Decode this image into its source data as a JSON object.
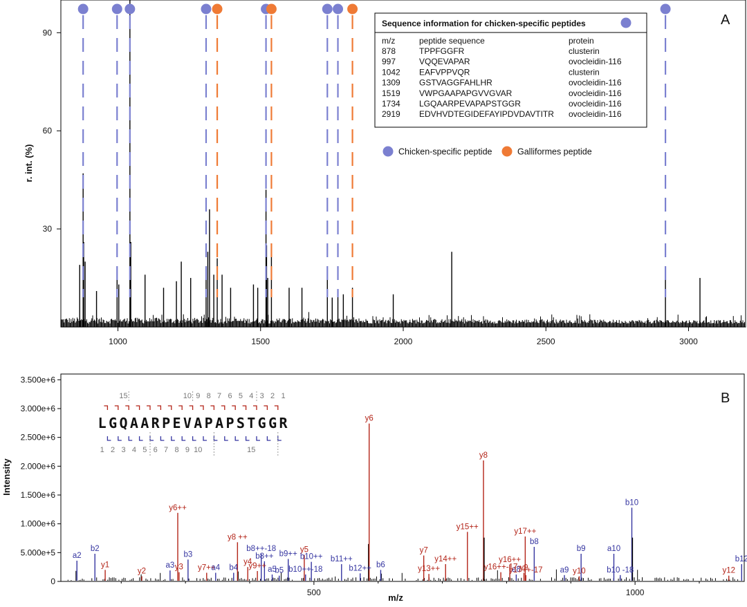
{
  "colors": {
    "chicken": "#7b80d0",
    "galliformes": "#ef7a35",
    "y_ion": "#b32418",
    "b_ion": "#3434a0",
    "frame": "#000000"
  },
  "chart_data": [
    {
      "panel": "A",
      "type": "line",
      "title": "",
      "xlabel": "",
      "ylabel": "r. int. (%)",
      "xlim": [
        800,
        3200
      ],
      "ylim": [
        0,
        100
      ],
      "x_ticks": [
        1000,
        1500,
        2000,
        2500,
        3000
      ],
      "y_ticks": [
        30,
        60,
        90
      ],
      "chicken_specific_markers_mz": [
        878,
        997,
        1042,
        1309,
        1519,
        1734,
        1771,
        2919
      ],
      "galliformes_markers_mz": [
        1348,
        1538,
        1822
      ],
      "major_peaks": [
        {
          "mz": 866,
          "value": 19
        },
        {
          "mz": 878,
          "value": 47
        },
        {
          "mz": 880,
          "value": 26
        },
        {
          "mz": 885,
          "value": 20
        },
        {
          "mz": 925,
          "value": 11
        },
        {
          "mz": 997,
          "value": 16
        },
        {
          "mz": 1003,
          "value": 13
        },
        {
          "mz": 1042,
          "value": 100
        },
        {
          "mz": 1045,
          "value": 26
        },
        {
          "mz": 1095,
          "value": 16
        },
        {
          "mz": 1160,
          "value": 12
        },
        {
          "mz": 1205,
          "value": 14
        },
        {
          "mz": 1222,
          "value": 20
        },
        {
          "mz": 1255,
          "value": 15
        },
        {
          "mz": 1309,
          "value": 15
        },
        {
          "mz": 1315,
          "value": 23
        },
        {
          "mz": 1321,
          "value": 36
        },
        {
          "mz": 1336,
          "value": 16
        },
        {
          "mz": 1348,
          "value": 21
        },
        {
          "mz": 1365,
          "value": 16
        },
        {
          "mz": 1395,
          "value": 12
        },
        {
          "mz": 1475,
          "value": 13
        },
        {
          "mz": 1490,
          "value": 12
        },
        {
          "mz": 1519,
          "value": 42
        },
        {
          "mz": 1521,
          "value": 25
        },
        {
          "mz": 1525,
          "value": 15
        },
        {
          "mz": 1538,
          "value": 25
        },
        {
          "mz": 1600,
          "value": 12
        },
        {
          "mz": 1645,
          "value": 12
        },
        {
          "mz": 1734,
          "value": 16
        },
        {
          "mz": 1751,
          "value": 9
        },
        {
          "mz": 1771,
          "value": 11
        },
        {
          "mz": 1790,
          "value": 10
        },
        {
          "mz": 1822,
          "value": 12
        },
        {
          "mz": 1965,
          "value": 10
        },
        {
          "mz": 2170,
          "value": 23
        },
        {
          "mz": 2919,
          "value": 18
        },
        {
          "mz": 3040,
          "value": 15
        }
      ],
      "legend": [
        {
          "name": "Chicken-specific peptide",
          "color": "#7b80d0"
        },
        {
          "name": "Galliformes peptide",
          "color": "#ef7a35"
        }
      ],
      "legend_position": "right"
    },
    {
      "panel": "B",
      "type": "bar",
      "title": "",
      "xlabel": "m/z",
      "ylabel": "Intensity",
      "xlim": [
        106,
        1170
      ],
      "ylim": [
        0,
        3600000
      ],
      "x_ticks": [
        500,
        1000
      ],
      "y_ticks": [
        "3.500e+6",
        "3.000e+6",
        "2.500e+6",
        "2.000e+6",
        "1.500e+6",
        "1.000e+6",
        "5.000e+5",
        "0"
      ],
      "y_tick_values": [
        3500000,
        3000000,
        2500000,
        2000000,
        1500000,
        1000000,
        500000,
        0
      ],
      "sequence": "LGQAARPEVAPAPSTGGR",
      "y_series_numbers": [
        "15",
        "10",
        "9",
        "8",
        "7",
        "6",
        "5",
        "4",
        "3",
        "2",
        "1"
      ],
      "b_series_numbers": [
        "1",
        "2",
        "3",
        "4",
        "5",
        "6",
        "7",
        "8",
        "9",
        "10",
        "15"
      ],
      "peaks": [
        {
          "mz": 131,
          "value": 360000,
          "label": "a2",
          "series": "b"
        },
        {
          "mz": 159,
          "value": 480000,
          "label": "b2",
          "series": "b"
        },
        {
          "mz": 175,
          "value": 200000,
          "label": "y1",
          "series": "y"
        },
        {
          "mz": 232,
          "value": 90000,
          "label": "y2",
          "series": "y"
        },
        {
          "mz": 276,
          "value": 190000,
          "label": "a3",
          "series": "b"
        },
        {
          "mz": 288,
          "value": 1190000,
          "label": "y6++",
          "series": "y"
        },
        {
          "mz": 290,
          "value": 160000,
          "label": "y3",
          "series": "y"
        },
        {
          "mz": 304,
          "value": 380000,
          "label": "b3",
          "series": "b"
        },
        {
          "mz": 333,
          "value": 150000,
          "label": "y7++",
          "series": "y"
        },
        {
          "mz": 347,
          "value": 150000,
          "label": "a4",
          "series": "b"
        },
        {
          "mz": 375,
          "value": 150000,
          "label": "b4",
          "series": "b"
        },
        {
          "mz": 381,
          "value": 680000,
          "label": "y8 ++",
          "series": "y"
        },
        {
          "mz": 397,
          "value": 250000,
          "label": "y4",
          "series": "y"
        },
        {
          "mz": 412,
          "value": 180000,
          "label": "y9++",
          "series": "y"
        },
        {
          "mz": 418,
          "value": 480000,
          "label": "b8++-18",
          "series": "b"
        },
        {
          "mz": 423,
          "value": 350000,
          "label": "b8++",
          "series": "b"
        },
        {
          "mz": 435,
          "value": 120000,
          "label": "a5",
          "series": "b"
        },
        {
          "mz": 446,
          "value": 100000,
          "label": "b5",
          "series": "b"
        },
        {
          "mz": 460,
          "value": 390000,
          "label": "b9++",
          "series": "b"
        },
        {
          "mz": 485,
          "value": 460000,
          "label": "y5",
          "series": "y"
        },
        {
          "mz": 487,
          "value": 120000,
          "label": "b10++-18",
          "series": "b"
        },
        {
          "mz": 496,
          "value": 340000,
          "label": "b10++",
          "series": "b"
        },
        {
          "mz": 543,
          "value": 300000,
          "label": "b11++",
          "series": "b"
        },
        {
          "mz": 572,
          "value": 140000,
          "label": "b12++",
          "series": "b"
        },
        {
          "mz": 585,
          "value": 650000,
          "label": "",
          "series": "none"
        },
        {
          "mz": 586,
          "value": 2740000,
          "label": "y6",
          "series": "y"
        },
        {
          "mz": 604,
          "value": 200000,
          "label": "b6",
          "series": "b"
        },
        {
          "mz": 671,
          "value": 450000,
          "label": "y7",
          "series": "y"
        },
        {
          "mz": 679,
          "value": 130000,
          "label": "y13++",
          "series": "y"
        },
        {
          "mz": 705,
          "value": 300000,
          "label": "y14++",
          "series": "y"
        },
        {
          "mz": 739,
          "value": 860000,
          "label": "y15++",
          "series": "y"
        },
        {
          "mz": 764,
          "value": 2100000,
          "label": "y8",
          "series": "y"
        },
        {
          "mz": 765,
          "value": 760000,
          "label": "",
          "series": "none"
        },
        {
          "mz": 791,
          "value": 160000,
          "label": "y16++-17",
          "series": "y"
        },
        {
          "mz": 805,
          "value": 290000,
          "label": "y16++",
          "series": "y"
        },
        {
          "mz": 815,
          "value": 120000,
          "label": "a8",
          "series": "b"
        },
        {
          "mz": 827,
          "value": 150000,
          "label": "y9",
          "series": "y"
        },
        {
          "mz": 829,
          "value": 780000,
          "label": "y17++",
          "series": "y"
        },
        {
          "mz": 830,
          "value": 110000,
          "label": "y17++-17",
          "series": "y"
        },
        {
          "mz": 843,
          "value": 600000,
          "label": "b8",
          "series": "b"
        },
        {
          "mz": 890,
          "value": 110000,
          "label": "a9",
          "series": "b"
        },
        {
          "mz": 913,
          "value": 90000,
          "label": "y10",
          "series": "y"
        },
        {
          "mz": 916,
          "value": 480000,
          "label": "b9",
          "series": "b"
        },
        {
          "mz": 967,
          "value": 480000,
          "label": "a10",
          "series": "b"
        },
        {
          "mz": 977,
          "value": 110000,
          "label": "b10 -18",
          "series": "b"
        },
        {
          "mz": 995,
          "value": 1280000,
          "label": "b10",
          "series": "b"
        },
        {
          "mz": 996,
          "value": 760000,
          "label": "",
          "series": "none"
        },
        {
          "mz": 1146,
          "value": 100000,
          "label": "y12",
          "series": "y"
        },
        {
          "mz": 1166,
          "value": 300000,
          "label": "b12",
          "series": "b"
        }
      ]
    }
  ],
  "panel_a": {
    "panel_letter": "A",
    "ylabel": "r. int. (%)",
    "table": {
      "title": "Sequence information for chicken-specific peptides",
      "headers": [
        "m/z",
        "peptide sequence",
        "protein"
      ],
      "rows": [
        [
          "878",
          "TPPFGGFR",
          "clusterin"
        ],
        [
          "997",
          "VQQEVAPAR",
          "ovocleidin-116"
        ],
        [
          "1042",
          "EAFVPPVQR",
          "clusterin"
        ],
        [
          "1309",
          "GSTVAGGFAHLHR",
          "ovocleidin-116"
        ],
        [
          "1519",
          "VWPGAAPAPGVVGVAR",
          "ovocleidin-116"
        ],
        [
          "1734",
          "LGQAARPEVAPAPSTGGR",
          "ovocleidin-116"
        ],
        [
          "2919",
          "EDVHVDTEGIDEFAYIPDVDAVTITR",
          "ovocleidin-116"
        ]
      ]
    },
    "legend": {
      "chicken_label": "Chicken-specific peptide",
      "galliformes_label": "Galliformes peptide"
    }
  },
  "panel_b": {
    "panel_letter": "B",
    "xlabel": "m/z",
    "ylabel": "Intensity"
  }
}
